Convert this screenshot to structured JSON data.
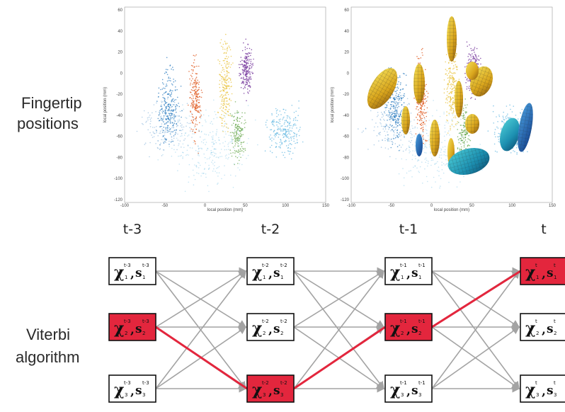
{
  "labels": {
    "fingertip": [
      "Fingertip",
      "positions"
    ],
    "viterbi": [
      "Viterbi",
      "algorithm"
    ]
  },
  "plots": [
    {
      "xlabel": "local position (mm)",
      "ylabel": "local position (mm)",
      "xticks": [
        "-100",
        "-50",
        "0",
        "50",
        "100",
        "150"
      ],
      "yticks": [
        "60",
        "40",
        "20",
        "0",
        "-20",
        "-40",
        "-60",
        "-80",
        "-100",
        "-120"
      ]
    },
    {
      "xlabel": "local position (mm)",
      "ylabel": "local position (mm)",
      "xticks": [
        "-100",
        "-50",
        "0",
        "50",
        "100",
        "150"
      ],
      "yticks": [
        "60",
        "40",
        "20",
        "0",
        "-20",
        "-40",
        "-60",
        "-80",
        "-100",
        "-120"
      ]
    }
  ],
  "trellis": {
    "times": [
      "t-3",
      "t-2",
      "t-1",
      "t"
    ],
    "sup_labels": [
      "t-3",
      "t-2",
      "t-1",
      "t"
    ],
    "chi_symbol": "χ",
    "s_symbol": "s",
    "states": [
      "1",
      "2",
      "3"
    ],
    "highlighted": [
      [
        0,
        1
      ],
      [
        1,
        2
      ],
      [
        2,
        1
      ],
      [
        3,
        0
      ]
    ],
    "colors": {
      "highlight": "#e3263d",
      "edge": "#a3a3a3",
      "path": "#e3263d",
      "box_border": "#111111"
    }
  },
  "colors": {
    "clusters": [
      "#2a7bbf",
      "#e0622a",
      "#e8c23a",
      "#7a3ea0",
      "#6aa84f",
      "#5ab4e0"
    ]
  }
}
